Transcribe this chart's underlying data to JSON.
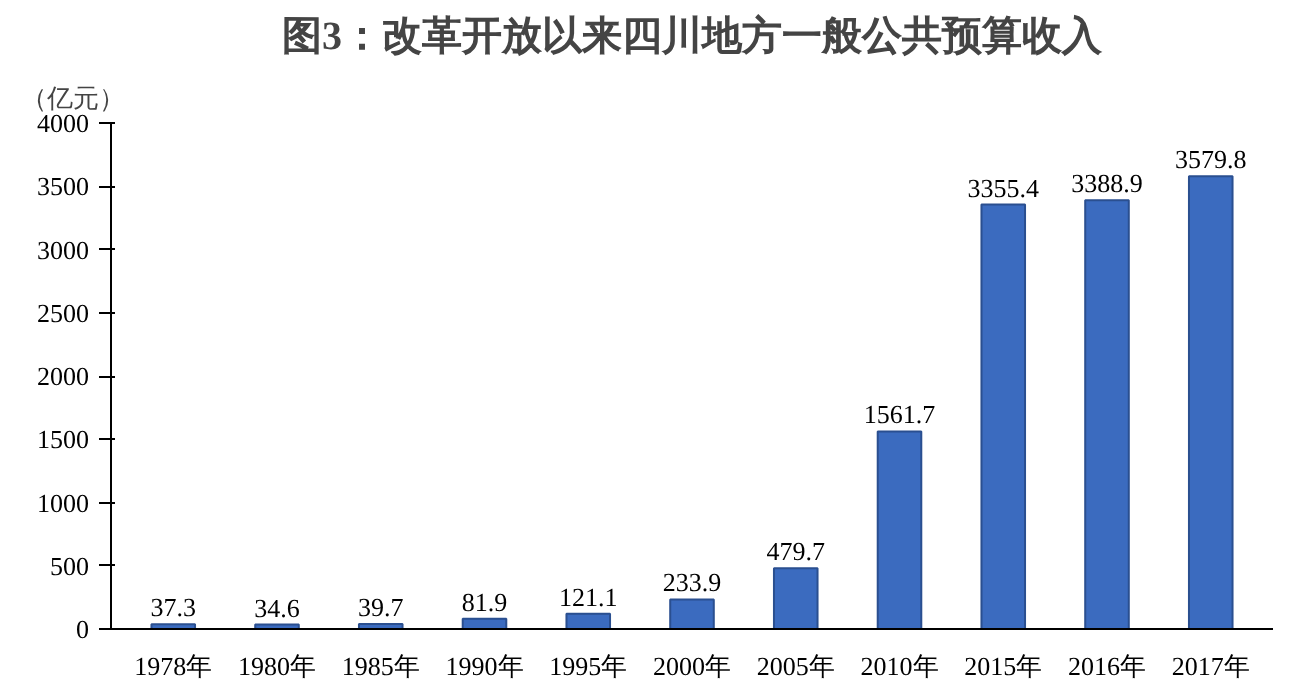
{
  "chart_data": {
    "type": "bar",
    "title": "图3：改革开放以来四川地方一般公共预算收入",
    "ylabel": "（亿元）",
    "categories": [
      "1978年",
      "1980年",
      "1985年",
      "1990年",
      "1995年",
      "2000年",
      "2005年",
      "2010年",
      "2015年",
      "2016年",
      "2017年"
    ],
    "values": [
      37.3,
      34.6,
      39.7,
      81.9,
      121.1,
      233.9,
      479.7,
      1561.7,
      3355.4,
      3388.9,
      3579.8
    ],
    "color": "#3b6bbf",
    "ylim": [
      0,
      4000
    ],
    "yticks": [
      0,
      500,
      1000,
      1500,
      2000,
      2500,
      3000,
      3500,
      4000
    ],
    "grid": false,
    "data_labels": true
  }
}
